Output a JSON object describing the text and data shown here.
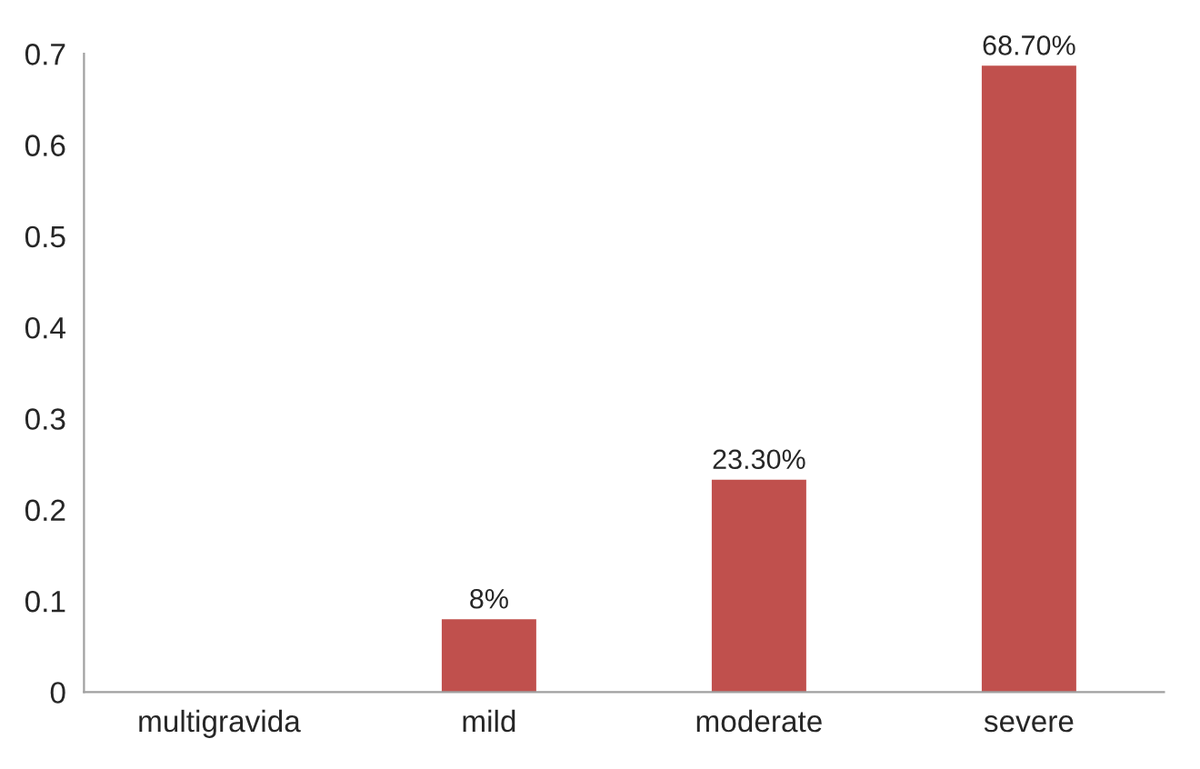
{
  "chart_data": {
    "type": "bar",
    "categories": [
      "multigravida",
      "mild",
      "moderate",
      "severe"
    ],
    "values": [
      null,
      0.08,
      0.233,
      0.687
    ],
    "value_labels": [
      null,
      "8%",
      "23.30%",
      "68.70%"
    ],
    "color": "#c0504d",
    "ylim": [
      0,
      0.7
    ],
    "yticks": [
      0,
      0.1,
      0.2,
      0.3,
      0.4,
      0.5,
      0.6,
      0.7
    ],
    "grid": false,
    "legend": false
  }
}
